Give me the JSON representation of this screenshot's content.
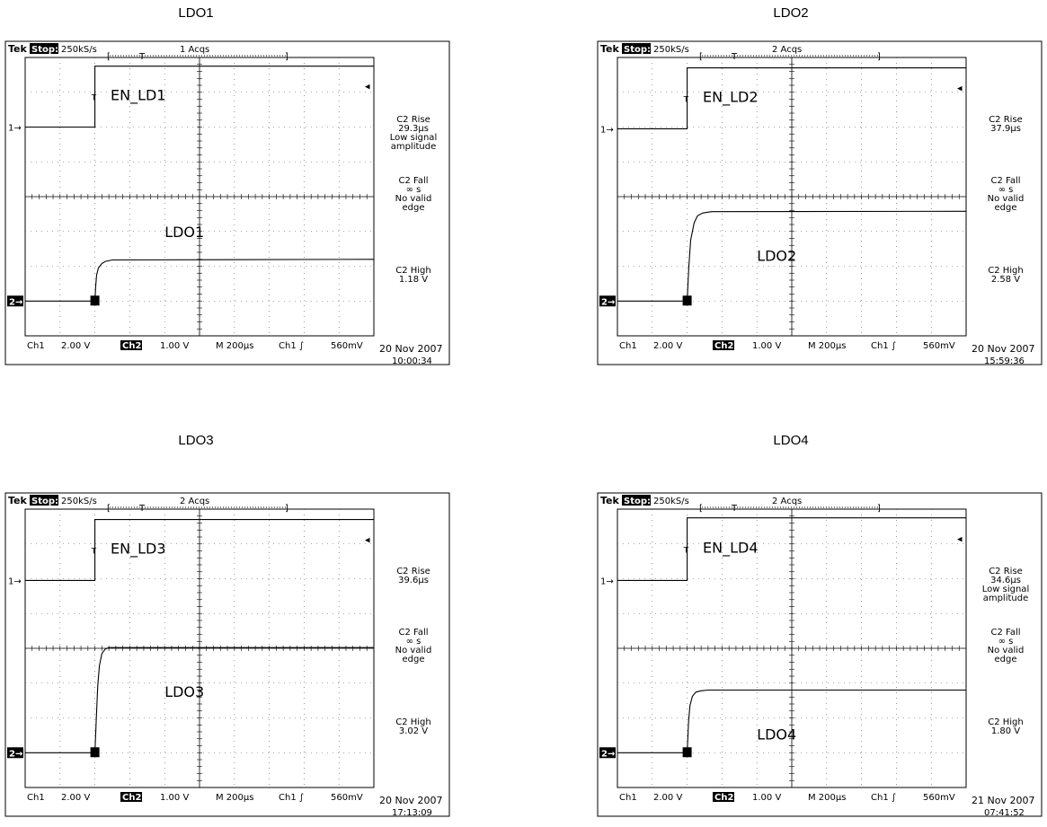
{
  "chart_data": [
    {
      "type": "line",
      "title": "LDO1",
      "header": {
        "brand": "Tek",
        "state": "Stop:",
        "rate": "250kS/s",
        "acqs": "1 Acqs"
      },
      "footer": {
        "ch1": "Ch1",
        "ch1_scale": "2.00 V",
        "ch2": "Ch2",
        "ch2_scale": "1.00 V",
        "timebase": "M 200µs",
        "trigger": "Ch1 ∫",
        "trigger_level": "560mV",
        "date": "20 Nov 2007",
        "time": "10:00:34"
      },
      "ch1_marker": "1",
      "ch2_marker": "2",
      "labels": {
        "en": "EN_LD1",
        "ldo": "LDO1"
      },
      "x_divisions": 10,
      "y_divisions": 8,
      "series": [
        {
          "name": "EN_LD1",
          "x": [
            0,
            2.0,
            2.0,
            10
          ],
          "y": [
            6.0,
            6.0,
            7.75,
            7.75
          ]
        },
        {
          "name": "LDO1",
          "x": [
            0,
            2.0,
            2.02,
            2.05,
            2.1,
            2.2,
            2.3,
            2.5,
            10
          ],
          "y": [
            1.0,
            1.0,
            1.4,
            1.75,
            1.95,
            2.08,
            2.14,
            2.18,
            2.2
          ]
        }
      ],
      "measurements": [
        [
          "C2 Rise",
          "29.3µs",
          "Low signal",
          "amplitude"
        ],
        [
          "C2 Fall",
          "∞ s",
          "No valid",
          "edge"
        ],
        [
          "C2 High",
          "1.18 V"
        ]
      ]
    },
    {
      "type": "line",
      "title": "LDO2",
      "header": {
        "brand": "Tek",
        "state": "Stop:",
        "rate": "250kS/s",
        "acqs": "2 Acqs"
      },
      "footer": {
        "ch1": "Ch1",
        "ch1_scale": "2.00 V",
        "ch2": "Ch2",
        "ch2_scale": "1.00 V",
        "timebase": "M 200µs",
        "trigger": "Ch1 ∫",
        "trigger_level": "560mV",
        "date": "20 Nov 2007",
        "time": "15:59:36"
      },
      "ch1_marker": "1",
      "ch2_marker": "2",
      "labels": {
        "en": "EN_LD2",
        "ldo": "LDO2"
      },
      "x_divisions": 10,
      "y_divisions": 8,
      "series": [
        {
          "name": "EN_LD2",
          "x": [
            0,
            2.0,
            2.0,
            10
          ],
          "y": [
            5.95,
            5.95,
            7.7,
            7.7
          ]
        },
        {
          "name": "LDO2",
          "x": [
            0,
            2.0,
            2.05,
            2.1,
            2.2,
            2.3,
            2.45,
            2.7,
            10
          ],
          "y": [
            1.0,
            1.0,
            2.0,
            2.75,
            3.25,
            3.45,
            3.53,
            3.57,
            3.58
          ]
        }
      ],
      "measurements": [
        [
          "C2 Rise",
          "37.9µs"
        ],
        [
          "C2 Fall",
          "∞ s",
          "No valid",
          "edge"
        ],
        [
          "C2 High",
          "2.58 V"
        ]
      ]
    },
    {
      "type": "line",
      "title": "LDO3",
      "header": {
        "brand": "Tek",
        "state": "Stop:",
        "rate": "250kS/s",
        "acqs": "2 Acqs"
      },
      "footer": {
        "ch1": "Ch1",
        "ch1_scale": "2.00 V",
        "ch2": "Ch2",
        "ch2_scale": "1.00 V",
        "timebase": "M 200µs",
        "trigger": "Ch1 ∫",
        "trigger_level": "560mV",
        "date": "20 Nov 2007",
        "time": "17:13:09"
      },
      "ch1_marker": "1",
      "ch2_marker": "2",
      "labels": {
        "en": "EN_LD3",
        "ldo": "LDO3"
      },
      "x_divisions": 10,
      "y_divisions": 8,
      "series": [
        {
          "name": "EN_LD3",
          "x": [
            0,
            2.0,
            2.0,
            10
          ],
          "y": [
            5.95,
            5.95,
            7.7,
            7.7
          ]
        },
        {
          "name": "LDO3",
          "x": [
            0,
            2.0,
            2.04,
            2.08,
            2.13,
            2.2,
            2.3,
            2.4,
            10
          ],
          "y": [
            1.0,
            1.0,
            2.0,
            2.9,
            3.5,
            3.85,
            3.98,
            4.02,
            4.02
          ]
        }
      ],
      "measurements": [
        [
          "C2 Rise",
          "39.6µs"
        ],
        [
          "C2 Fall",
          "∞ s",
          "No valid",
          "edge"
        ],
        [
          "C2 High",
          "3.02 V"
        ]
      ]
    },
    {
      "type": "line",
      "title": "LDO4",
      "header": {
        "brand": "Tek",
        "state": "Stop:",
        "rate": "250kS/s",
        "acqs": "2 Acqs"
      },
      "footer": {
        "ch1": "Ch1",
        "ch1_scale": "2.00 V",
        "ch2": "Ch2",
        "ch2_scale": "1.00 V",
        "timebase": "M 200µs",
        "trigger": "Ch1 ∫",
        "trigger_level": "560mV",
        "date": "21 Nov 2007",
        "time": "07:41:52"
      },
      "ch1_marker": "1",
      "ch2_marker": "2",
      "labels": {
        "en": "EN_LD4",
        "ldo": "LDO4"
      },
      "x_divisions": 10,
      "y_divisions": 8,
      "series": [
        {
          "name": "EN_LD4",
          "x": [
            0,
            2.0,
            2.0,
            10
          ],
          "y": [
            5.95,
            5.95,
            7.75,
            7.75
          ]
        },
        {
          "name": "LDO4",
          "x": [
            0,
            2.0,
            2.04,
            2.08,
            2.15,
            2.25,
            2.4,
            2.6,
            10
          ],
          "y": [
            1.0,
            1.0,
            1.9,
            2.35,
            2.62,
            2.74,
            2.78,
            2.8,
            2.8
          ]
        }
      ],
      "measurements": [
        [
          "C2 Rise",
          "34.6µs",
          "Low signal",
          "amplitude"
        ],
        [
          "C2 Fall",
          "∞ s",
          "No valid",
          "edge"
        ],
        [
          "C2 High",
          "1.80 V"
        ]
      ]
    }
  ]
}
